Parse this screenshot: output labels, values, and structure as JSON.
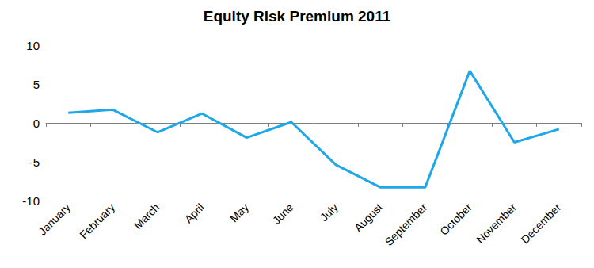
{
  "chart_data": {
    "type": "line",
    "title": "Equity Risk Premium 2011",
    "categories": [
      "January",
      "February",
      "March",
      "April",
      "May",
      "June",
      "July",
      "August",
      "September",
      "October",
      "November",
      "December"
    ],
    "values": [
      1.3,
      1.7,
      -1.2,
      1.2,
      -1.9,
      0.1,
      -5.4,
      -8.3,
      -8.3,
      6.7,
      -2.5,
      -0.8
    ],
    "color": "#1fa8e8",
    "ylim": [
      -10,
      10
    ],
    "yticks": [
      -10,
      -5,
      0,
      5,
      10
    ],
    "grid": false
  }
}
